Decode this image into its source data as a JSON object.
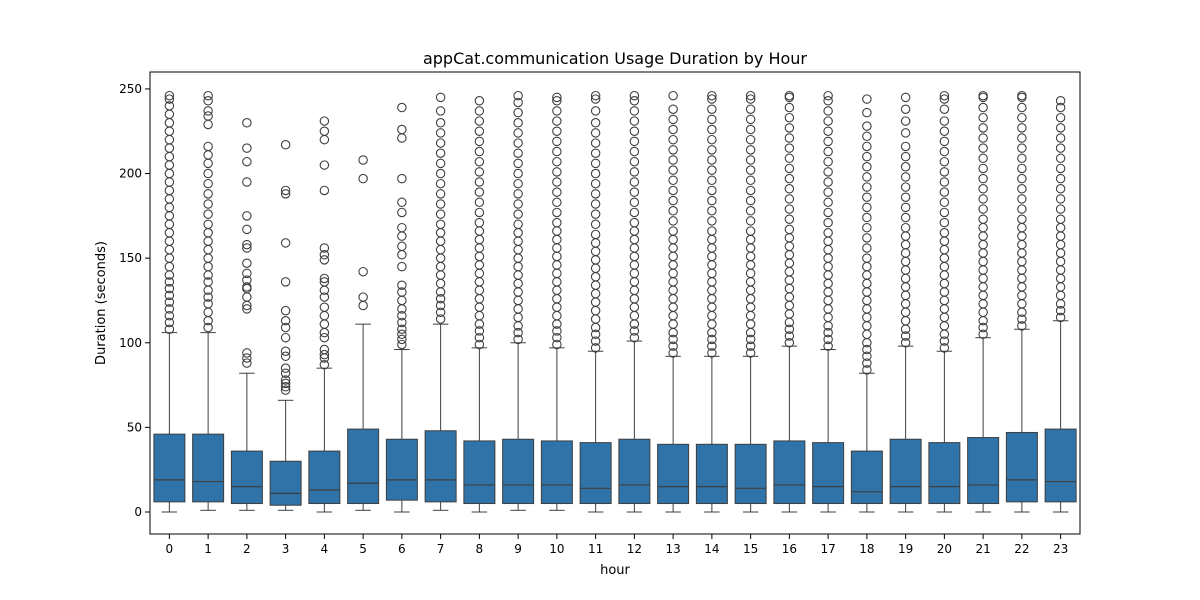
{
  "chart_data": {
    "type": "box",
    "title": "appCat.communication Usage Duration by Hour",
    "xlabel": "hour",
    "ylabel": "Duration (seconds)",
    "ylim": [
      -13,
      260
    ],
    "yticks": [
      0,
      50,
      100,
      150,
      200,
      250
    ],
    "categories": [
      "0",
      "1",
      "2",
      "3",
      "4",
      "5",
      "6",
      "7",
      "8",
      "9",
      "10",
      "11",
      "12",
      "13",
      "14",
      "15",
      "16",
      "17",
      "18",
      "19",
      "20",
      "21",
      "22",
      "23"
    ],
    "box_color": "#2f73a8",
    "series": [
      {
        "boxes": [
          {
            "min": 0,
            "q1": 6,
            "median": 19,
            "q3": 46,
            "whisker_high": 106,
            "outliers": [
              108,
              112,
              116,
              120,
              124,
              128,
              132,
              136,
              140,
              145,
              150,
              155,
              160,
              165,
              170,
              175,
              180,
              185,
              190,
              195,
              200,
              205,
              210,
              215,
              220,
              225,
              230,
              235,
              240,
              244,
              246
            ]
          },
          {
            "min": 1,
            "q1": 6,
            "median": 18,
            "q3": 46,
            "whisker_high": 106,
            "outliers": [
              109,
              113,
              118,
              123,
              127,
              131,
              136,
              140,
              145,
              150,
              155,
              160,
              165,
              170,
              176,
              182,
              188,
              194,
              200,
              206,
              211,
              216,
              229,
              234,
              237,
              243,
              246
            ]
          },
          {
            "min": 1,
            "q1": 5,
            "median": 15,
            "q3": 36,
            "whisker_high": 82,
            "outliers": [
              88,
              91,
              94,
              120,
              122,
              127,
              132,
              133,
              137,
              141,
              147,
              156,
              158,
              167,
              175,
              195,
              207,
              215,
              230
            ]
          },
          {
            "min": 1,
            "q1": 4,
            "median": 11,
            "q3": 30,
            "whisker_high": 66,
            "outliers": [
              72,
              74,
              76,
              78,
              82,
              85,
              92,
              95,
              103,
              109,
              113,
              119,
              136,
              159,
              188,
              190,
              217
            ]
          },
          {
            "min": 0,
            "q1": 5,
            "median": 13,
            "q3": 36,
            "whisker_high": 85,
            "outliers": [
              87,
              91,
              93,
              96,
              103,
              106,
              111,
              116,
              121,
              127,
              131,
              136,
              138,
              149,
              152,
              156,
              190,
              205,
              220,
              225,
              231
            ]
          },
          {
            "min": 1,
            "q1": 5,
            "median": 17,
            "q3": 49,
            "whisker_high": 111,
            "outliers": [
              122,
              127,
              142,
              197,
              208
            ]
          },
          {
            "min": 0,
            "q1": 7,
            "median": 19,
            "q3": 43,
            "whisker_high": 96,
            "outliers": [
              99,
              102,
              105,
              108,
              112,
              116,
              120,
              125,
              130,
              134,
              145,
              152,
              157,
              163,
              168,
              177,
              183,
              197,
              221,
              226,
              239
            ]
          },
          {
            "min": 1,
            "q1": 6,
            "median": 19,
            "q3": 48,
            "whisker_high": 111,
            "outliers": [
              114,
              118,
              122,
              126,
              130,
              135,
              140,
              145,
              150,
              155,
              160,
              165,
              170,
              176,
              182,
              188,
              194,
              200,
              206,
              212,
              218,
              224,
              230,
              237,
              245
            ]
          },
          {
            "min": 0,
            "q1": 5,
            "median": 16,
            "q3": 42,
            "whisker_high": 97,
            "outliers": [
              99,
              103,
              107,
              111,
              116,
              121,
              126,
              131,
              136,
              141,
              146,
              151,
              156,
              161,
              166,
              171,
              177,
              183,
              189,
              195,
              201,
              207,
              213,
              219,
              225,
              231,
              237,
              243
            ]
          },
          {
            "min": 1,
            "q1": 5,
            "median": 16,
            "q3": 43,
            "whisker_high": 100,
            "outliers": [
              102,
              106,
              110,
              115,
              120,
              125,
              130,
              135,
              140,
              145,
              150,
              155,
              160,
              165,
              170,
              176,
              182,
              188,
              194,
              200,
              206,
              212,
              218,
              224,
              230,
              236,
              242,
              246
            ]
          },
          {
            "min": 1,
            "q1": 5,
            "median": 16,
            "q3": 42,
            "whisker_high": 97,
            "outliers": [
              99,
              103,
              107,
              111,
              116,
              121,
              126,
              131,
              136,
              141,
              146,
              151,
              156,
              161,
              166,
              171,
              177,
              183,
              189,
              195,
              201,
              207,
              213,
              219,
              225,
              231,
              237,
              243,
              245
            ]
          },
          {
            "min": 0,
            "q1": 5,
            "median": 14,
            "q3": 41,
            "whisker_high": 95,
            "outliers": [
              97,
              101,
              105,
              109,
              114,
              119,
              124,
              129,
              134,
              139,
              144,
              149,
              154,
              159,
              164,
              170,
              176,
              182,
              188,
              194,
              200,
              206,
              212,
              218,
              224,
              230,
              237,
              244,
              246
            ]
          },
          {
            "min": 0,
            "q1": 5,
            "median": 16,
            "q3": 43,
            "whisker_high": 101,
            "outliers": [
              103,
              107,
              111,
              116,
              121,
              126,
              131,
              136,
              141,
              146,
              151,
              156,
              161,
              166,
              171,
              177,
              183,
              189,
              195,
              201,
              207,
              213,
              219,
              225,
              231,
              237,
              243,
              246
            ]
          },
          {
            "min": 0,
            "q1": 5,
            "median": 15,
            "q3": 40,
            "whisker_high": 92,
            "outliers": [
              94,
              98,
              102,
              106,
              111,
              116,
              121,
              126,
              131,
              136,
              141,
              146,
              151,
              156,
              161,
              166,
              172,
              178,
              184,
              190,
              196,
              202,
              208,
              214,
              220,
              226,
              232,
              238,
              246
            ]
          },
          {
            "min": 0,
            "q1": 5,
            "median": 15,
            "q3": 40,
            "whisker_high": 92,
            "outliers": [
              94,
              98,
              102,
              106,
              111,
              116,
              121,
              126,
              131,
              136,
              141,
              146,
              151,
              156,
              161,
              166,
              172,
              178,
              184,
              190,
              196,
              202,
              208,
              214,
              220,
              226,
              232,
              238,
              244,
              246
            ]
          },
          {
            "min": 0,
            "q1": 5,
            "median": 14,
            "q3": 40,
            "whisker_high": 92,
            "outliers": [
              94,
              98,
              102,
              106,
              111,
              116,
              121,
              126,
              131,
              136,
              141,
              146,
              151,
              156,
              161,
              166,
              172,
              178,
              184,
              190,
              196,
              202,
              208,
              214,
              220,
              226,
              232,
              238,
              244,
              246
            ]
          },
          {
            "min": 0,
            "q1": 5,
            "median": 16,
            "q3": 42,
            "whisker_high": 98,
            "outliers": [
              100,
              104,
              108,
              112,
              117,
              122,
              127,
              132,
              137,
              142,
              147,
              152,
              157,
              162,
              167,
              173,
              179,
              185,
              191,
              197,
              203,
              209,
              215,
              221,
              227,
              233,
              239,
              245,
              246
            ]
          },
          {
            "min": 0,
            "q1": 5,
            "median": 15,
            "q3": 41,
            "whisker_high": 96,
            "outliers": [
              98,
              102,
              106,
              110,
              115,
              120,
              125,
              130,
              135,
              140,
              145,
              150,
              155,
              160,
              165,
              171,
              177,
              183,
              189,
              195,
              201,
              207,
              213,
              219,
              225,
              231,
              237,
              243,
              246
            ]
          },
          {
            "min": 0,
            "q1": 5,
            "median": 12,
            "q3": 36,
            "whisker_high": 82,
            "outliers": [
              84,
              88,
              92,
              96,
              100,
              105,
              110,
              115,
              120,
              125,
              130,
              135,
              140,
              145,
              150,
              156,
              162,
              168,
              174,
              180,
              186,
              192,
              198,
              204,
              210,
              216,
              222,
              228,
              236,
              244
            ]
          },
          {
            "min": 0,
            "q1": 5,
            "median": 15,
            "q3": 43,
            "whisker_high": 98,
            "outliers": [
              100,
              104,
              108,
              113,
              118,
              123,
              128,
              133,
              138,
              143,
              148,
              153,
              158,
              163,
              168,
              174,
              180,
              186,
              192,
              198,
              204,
              210,
              216,
              224,
              231,
              238,
              245
            ]
          },
          {
            "min": 0,
            "q1": 5,
            "median": 15,
            "q3": 41,
            "whisker_high": 95,
            "outliers": [
              97,
              101,
              105,
              110,
              115,
              120,
              125,
              130,
              135,
              140,
              145,
              150,
              155,
              160,
              165,
              171,
              177,
              183,
              189,
              195,
              201,
              207,
              213,
              219,
              225,
              231,
              238,
              244,
              246
            ]
          },
          {
            "min": 0,
            "q1": 5,
            "median": 16,
            "q3": 44,
            "whisker_high": 103,
            "outliers": [
              105,
              109,
              113,
              118,
              123,
              128,
              133,
              138,
              143,
              148,
              153,
              158,
              163,
              168,
              173,
              179,
              185,
              191,
              197,
              203,
              209,
              215,
              221,
              227,
              233,
              239,
              245,
              246
            ]
          },
          {
            "min": 0,
            "q1": 6,
            "median": 19,
            "q3": 47,
            "whisker_high": 108,
            "outliers": [
              110,
              114,
              118,
              123,
              128,
              133,
              138,
              143,
              148,
              153,
              158,
              163,
              168,
              173,
              179,
              185,
              191,
              197,
              203,
              209,
              215,
              221,
              227,
              233,
              239,
              245,
              246
            ]
          },
          {
            "min": 0,
            "q1": 6,
            "median": 18,
            "q3": 49,
            "whisker_high": 113,
            "outliers": [
              115,
              119,
              123,
              128,
              133,
              138,
              143,
              148,
              153,
              158,
              163,
              168,
              173,
              179,
              185,
              191,
              197,
              203,
              209,
              215,
              221,
              227,
              233,
              239,
              243
            ]
          }
        ]
      }
    ]
  }
}
